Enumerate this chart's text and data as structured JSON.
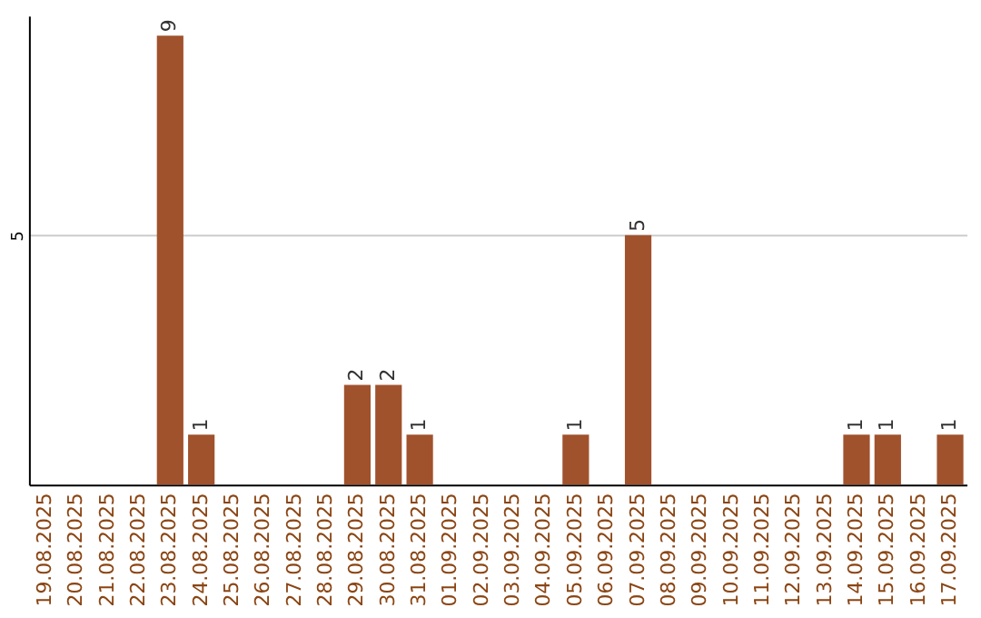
{
  "chart_data": {
    "type": "bar",
    "categories": [
      "19.08.2025",
      "20.08.2025",
      "21.08.2025",
      "22.08.2025",
      "23.08.2025",
      "24.08.2025",
      "25.08.2025",
      "26.08.2025",
      "27.08.2025",
      "28.08.2025",
      "29.08.2025",
      "30.08.2025",
      "31.08.2025",
      "01.09.2025",
      "02.09.2025",
      "03.09.2025",
      "04.09.2025",
      "05.09.2025",
      "06.09.2025",
      "07.09.2025",
      "08.09.2025",
      "09.09.2025",
      "10.09.2025",
      "11.09.2025",
      "12.09.2025",
      "13.09.2025",
      "14.09.2025",
      "15.09.2025",
      "16.09.2025",
      "17.09.2025"
    ],
    "values": [
      0,
      0,
      0,
      0,
      9,
      1,
      0,
      0,
      0,
      0,
      2,
      2,
      1,
      0,
      0,
      0,
      0,
      1,
      0,
      5,
      0,
      0,
      0,
      0,
      0,
      0,
      1,
      1,
      0,
      1
    ],
    "value_labels": [
      null,
      null,
      null,
      null,
      "9",
      "1",
      null,
      null,
      null,
      null,
      "2",
      "2",
      "1",
      null,
      null,
      null,
      null,
      "1",
      null,
      "5",
      null,
      null,
      null,
      null,
      null,
      null,
      "1",
      "1",
      null,
      "1"
    ],
    "color": "#a0522d",
    "ylim": [
      0,
      9.4
    ],
    "yticks": [
      5
    ],
    "grid": "y"
  }
}
